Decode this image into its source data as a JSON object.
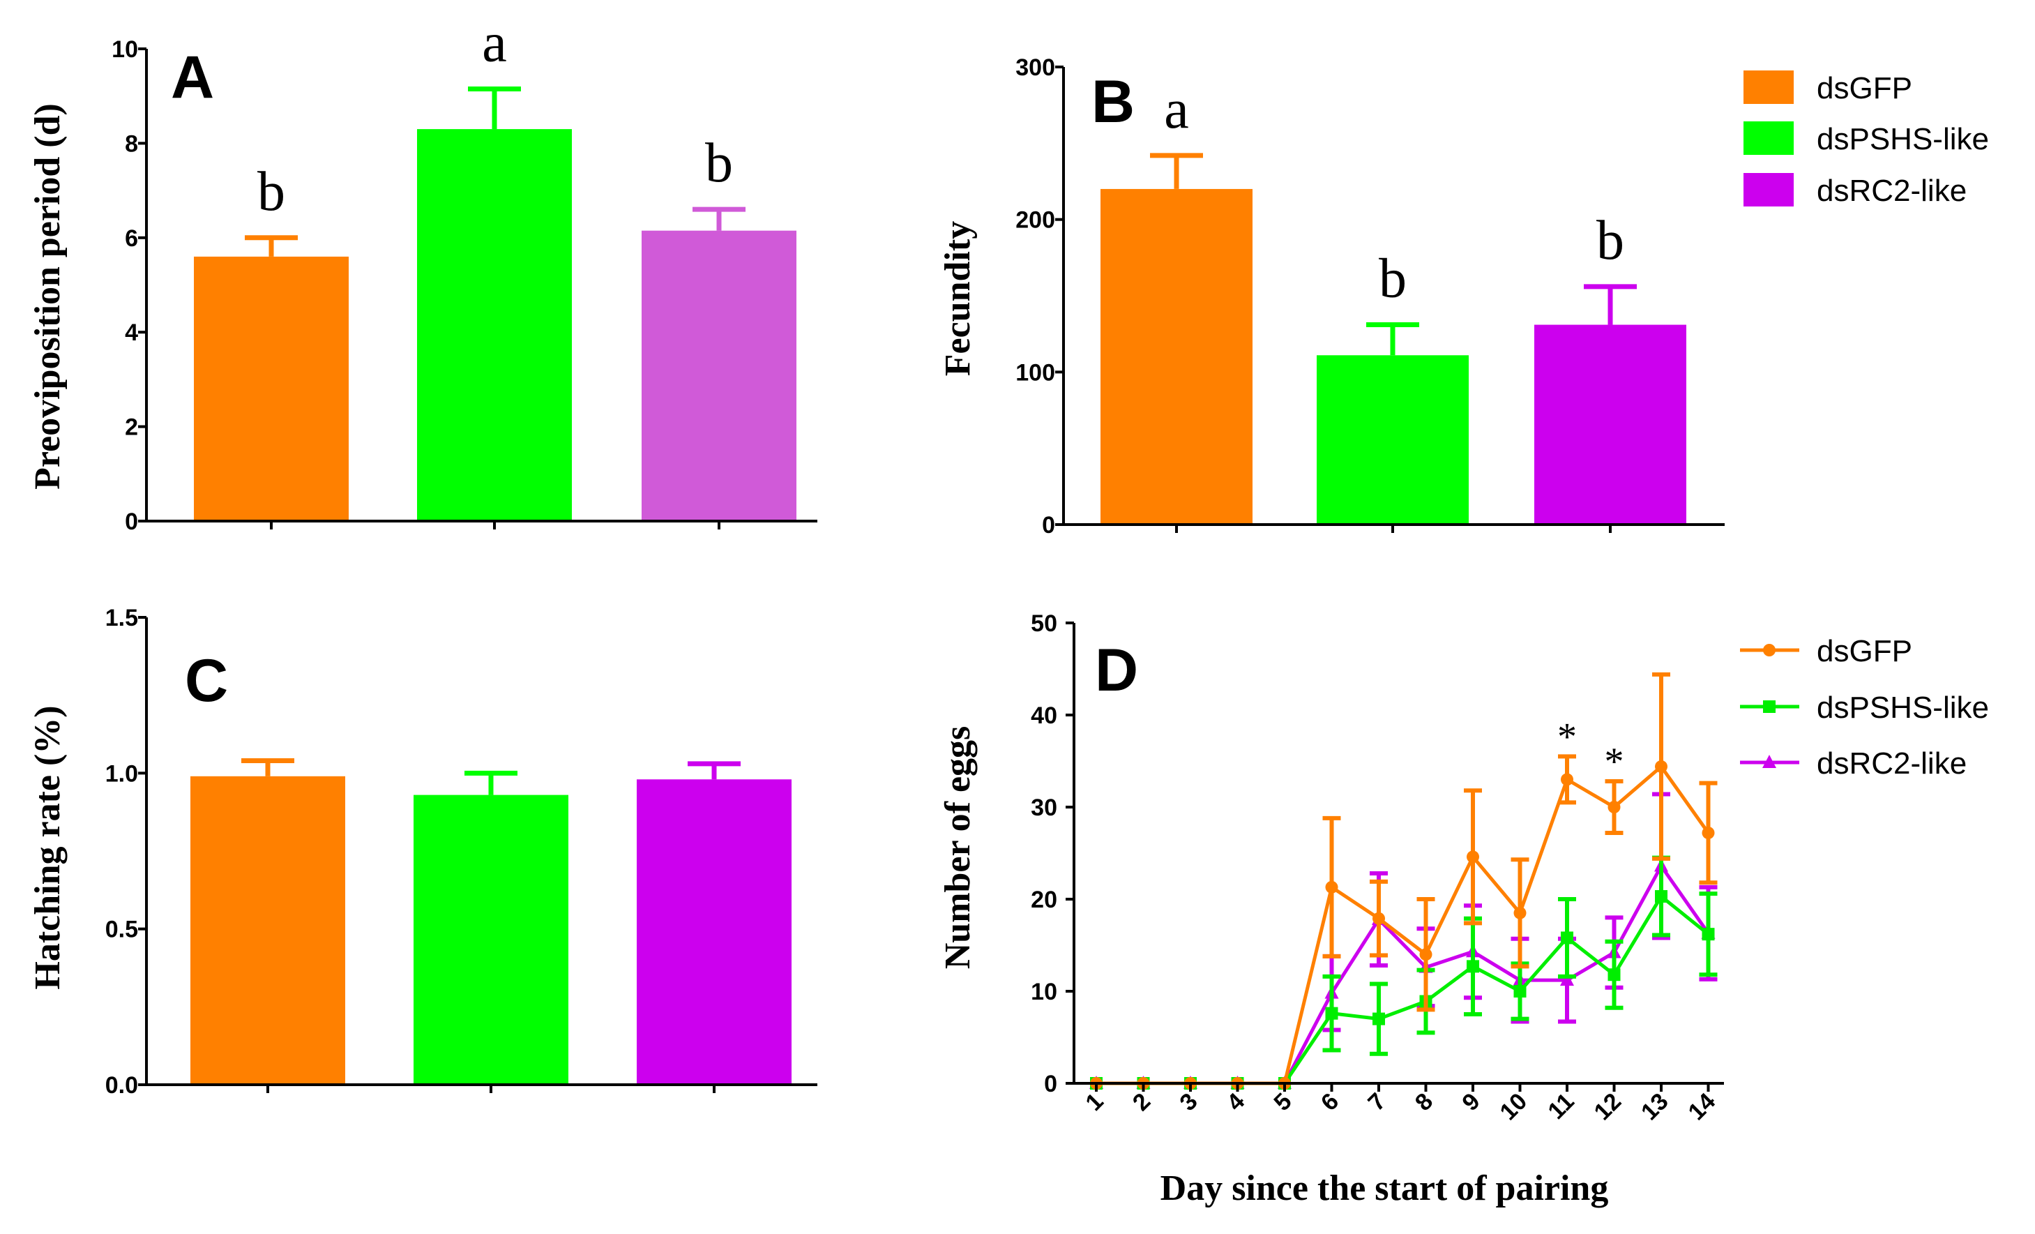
{
  "chart_data": [
    {
      "panel": "A",
      "type": "bar",
      "categories": [
        "dsGFP",
        "dsPSHS-like",
        "dsRC2-like"
      ],
      "values": [
        5.6,
        8.3,
        6.15
      ],
      "errors": [
        0.4,
        0.85,
        0.45
      ],
      "colors": [
        "#ff8000",
        "#00ff00",
        "#d05ad8"
      ],
      "significance": [
        "b",
        "a",
        "b"
      ],
      "ylabel": "Preoviposition period (d)",
      "ylim": [
        0,
        10
      ],
      "yticks": [
        "0",
        "2",
        "4",
        "6",
        "8",
        "10"
      ]
    },
    {
      "panel": "B",
      "type": "bar",
      "categories": [
        "dsGFP",
        "dsPSHS-like",
        "dsRC2-like"
      ],
      "values": [
        220,
        111,
        131
      ],
      "errors": [
        22,
        20,
        25
      ],
      "colors": [
        "#ff8000",
        "#00ff00",
        "#cc00ee"
      ],
      "significance": [
        "a",
        "b",
        "b"
      ],
      "ylabel": "Fecundity",
      "ylim": [
        0,
        300
      ],
      "yticks": [
        "0",
        "100",
        "200",
        "300"
      ],
      "legend": [
        {
          "label": "dsGFP",
          "color": "#ff8000"
        },
        {
          "label": "dsPSHS-like",
          "color": "#00ff00"
        },
        {
          "label": "dsRC2-like",
          "color": "#cc00ee"
        }
      ]
    },
    {
      "panel": "C",
      "type": "bar",
      "categories": [
        "dsGFP",
        "dsPSHS-like",
        "dsRC2-like"
      ],
      "values": [
        0.99,
        0.93,
        0.98
      ],
      "errors": [
        0.05,
        0.07,
        0.05
      ],
      "colors": [
        "#ff8000",
        "#00ff00",
        "#cc00ee"
      ],
      "ylabel": "Hatching rate (%)",
      "ylim": [
        0,
        1.5
      ],
      "yticks": [
        "0.0",
        "0.5",
        "1.0",
        "1.5"
      ]
    },
    {
      "panel": "D",
      "type": "line",
      "x": [
        "1",
        "2",
        "3",
        "4",
        "5",
        "6",
        "7",
        "8",
        "9",
        "10",
        "11",
        "12",
        "13",
        "14"
      ],
      "series": [
        {
          "name": "dsGFP",
          "color": "#ff8000",
          "marker": "circle",
          "values": [
            0,
            0,
            0,
            0,
            0,
            21.3,
            17.9,
            14,
            24.6,
            18.5,
            33,
            30,
            34.4,
            27.2
          ],
          "errors": [
            0,
            0,
            0,
            0,
            0,
            7.5,
            4,
            6,
            7.2,
            5.8,
            2.5,
            2.8,
            10,
            5.4
          ]
        },
        {
          "name": "dsPSHS-like",
          "color": "#00ee00",
          "marker": "square",
          "values": [
            0,
            0,
            0,
            0,
            0,
            7.6,
            7,
            8.9,
            12.7,
            10,
            15.8,
            11.8,
            20.3,
            16.2
          ],
          "errors": [
            0,
            0,
            0,
            0,
            0,
            4,
            3.8,
            3.4,
            5.2,
            3,
            4.2,
            3.6,
            4.2,
            4.4
          ]
        },
        {
          "name": "dsRC2-like",
          "color": "#cc00ee",
          "marker": "triangle",
          "values": [
            0,
            0,
            0,
            0,
            0,
            9.8,
            17.8,
            12.6,
            14.3,
            11.2,
            11.2,
            14.2,
            23.6,
            16.3
          ],
          "errors": [
            0,
            0,
            0,
            0,
            0,
            4,
            5,
            4.2,
            5,
            4.5,
            4.5,
            3.8,
            7.8,
            5
          ]
        }
      ],
      "annotations": [
        {
          "x": "11",
          "text": "*"
        },
        {
          "x": "12",
          "text": "*"
        }
      ],
      "xlabel": "Day since the start of pairing",
      "ylabel": "Number of eggs",
      "ylim": [
        0,
        50
      ],
      "yticks": [
        "0",
        "10",
        "20",
        "30",
        "40",
        "50"
      ]
    }
  ]
}
